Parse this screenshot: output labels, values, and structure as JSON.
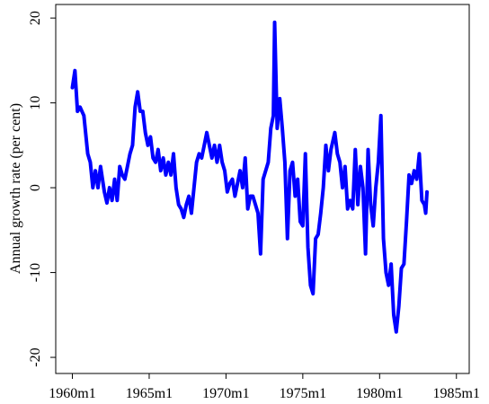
{
  "chart_data": {
    "type": "line",
    "y_label": "Annual growth rate (per cent)",
    "color": "#0000ff",
    "xlim": [
      "1958m12",
      "1985m11"
    ],
    "xticks": [
      "1960m1",
      "1965m1",
      "1970m1",
      "1975m1",
      "1980m1",
      "1985m1"
    ],
    "ylim": [
      -21.9,
      21.6
    ],
    "yticks": [
      -20,
      -10,
      0,
      10,
      20
    ],
    "x": [
      "1960m1",
      "1960m3",
      "1960m5",
      "1960m7",
      "1960m10",
      "1961m1",
      "1961m3",
      "1961m5",
      "1961m7",
      "1961m9",
      "1961m11",
      "1962m2",
      "1962m4",
      "1962m6",
      "1962m8",
      "1962m10",
      "1962m12",
      "1963m2",
      "1963m4",
      "1963m6",
      "1963m8",
      "1963m10",
      "1963m12",
      "1964m2",
      "1964m4",
      "1964m6",
      "1964m8",
      "1964m10",
      "1964m12",
      "1965m2",
      "1965m4",
      "1965m6",
      "1965m8",
      "1965m10",
      "1965m12",
      "1966m2",
      "1966m4",
      "1966m6",
      "1966m8",
      "1966m10",
      "1966m12",
      "1967m2",
      "1967m4",
      "1967m6",
      "1967m8",
      "1967m10",
      "1967m12",
      "1968m2",
      "1968m4",
      "1968m6",
      "1968m8",
      "1968m10",
      "1968m12",
      "1969m2",
      "1969m4",
      "1969m6",
      "1969m8",
      "1969m10",
      "1969m12",
      "1970m2",
      "1970m4",
      "1970m6",
      "1970m8",
      "1970m10",
      "1970m12",
      "1971m2",
      "1971m4",
      "1971m6",
      "1971m8",
      "1971m10",
      "1971m12",
      "1972m2",
      "1972m4",
      "1972m6",
      "1972m8",
      "1972m10",
      "1972m12",
      "1973m2",
      "1973m3",
      "1973m5",
      "1973m7",
      "1973m9",
      "1973m11",
      "1974m1",
      "1974m3",
      "1974m5",
      "1974m7",
      "1974m9",
      "1974m11",
      "1975m1",
      "1975m3",
      "1975m5",
      "1975m7",
      "1975m9",
      "1975m11",
      "1976m1",
      "1976m3",
      "1976m5",
      "1976m7",
      "1976m9",
      "1976m11",
      "1977m2",
      "1977m4",
      "1977m6",
      "1977m8",
      "1977m10",
      "1977m12",
      "1978m2",
      "1978m4",
      "1978m6",
      "1978m8",
      "1978m10",
      "1978m12",
      "1979m2",
      "1979m4",
      "1979m6",
      "1979m8",
      "1979m10",
      "1979m12",
      "1980m2",
      "1980m4",
      "1980m6",
      "1980m8",
      "1980m10",
      "1980m12",
      "1981m2",
      "1981m4",
      "1981m6",
      "1981m8",
      "1981m10",
      "1981m12",
      "1982m2",
      "1982m4",
      "1982m6",
      "1982m8",
      "1982m10",
      "1982m12",
      "1983m1",
      "1983m2"
    ],
    "values": [
      11.8,
      13.8,
      9,
      9.5,
      8.5,
      4,
      3,
      0,
      2,
      0,
      2.5,
      -0.5,
      -1.8,
      0,
      -1.5,
      1,
      -1.5,
      2.5,
      1.5,
      1,
      2.5,
      4,
      5,
      9.5,
      11.3,
      9,
      9,
      6.5,
      5,
      6,
      3.5,
      3,
      4.5,
      2,
      3.5,
      1.5,
      3,
      1.5,
      4,
      0,
      -2,
      -2.5,
      -3.5,
      -2,
      -1,
      -3,
      0,
      3,
      4,
      3.5,
      5,
      6.5,
      5,
      3.5,
      5,
      3,
      5,
      3,
      2,
      -0.5,
      0.5,
      1,
      -1,
      0.5,
      2,
      0,
      3.5,
      -2.5,
      -1,
      -1,
      -2,
      -3,
      -7.8,
      1,
      2,
      3,
      7,
      8.5,
      19.5,
      7,
      10.5,
      7,
      3,
      -6,
      2,
      3,
      -1,
      1,
      -4,
      -4.5,
      4,
      -7,
      -11.5,
      -12.5,
      -6,
      -5.5,
      -3,
      0,
      5,
      2,
      4.5,
      6.5,
      4,
      3,
      0,
      2.5,
      -2.5,
      -1.5,
      -2.5,
      4.5,
      -2,
      2.5,
      0,
      -7.8,
      4.5,
      -2,
      -4.5,
      0,
      3,
      8.5,
      -6,
      -10,
      -11.5,
      -9,
      -15,
      -17,
      -14,
      -9.5,
      -9,
      -4,
      1.5,
      0.5,
      2,
      1,
      4,
      -1.5,
      -2,
      -3,
      -0.5
    ]
  }
}
